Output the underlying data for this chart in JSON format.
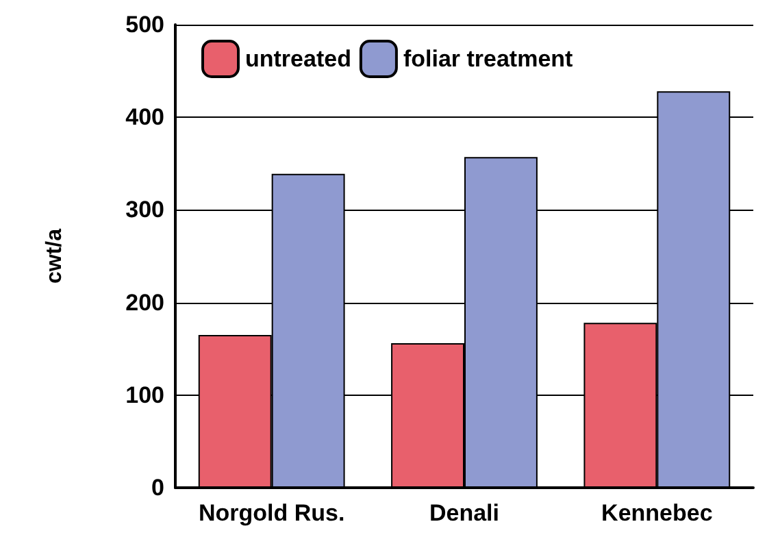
{
  "chart_data": {
    "type": "bar",
    "ylabel": "cwt/a",
    "categories": [
      "Norgold Rus.",
      "Denali",
      "Kennebec"
    ],
    "series": [
      {
        "name": "untreated",
        "color": "#e8606c",
        "values": [
          165,
          156,
          178
        ]
      },
      {
        "name": "foliar treatment",
        "color": "#8f9ad0",
        "values": [
          339,
          357,
          428
        ]
      }
    ],
    "ylim": [
      0,
      500
    ],
    "yticks": [
      0,
      100,
      200,
      300,
      400,
      500
    ],
    "grid": "y",
    "legend": "top left"
  }
}
